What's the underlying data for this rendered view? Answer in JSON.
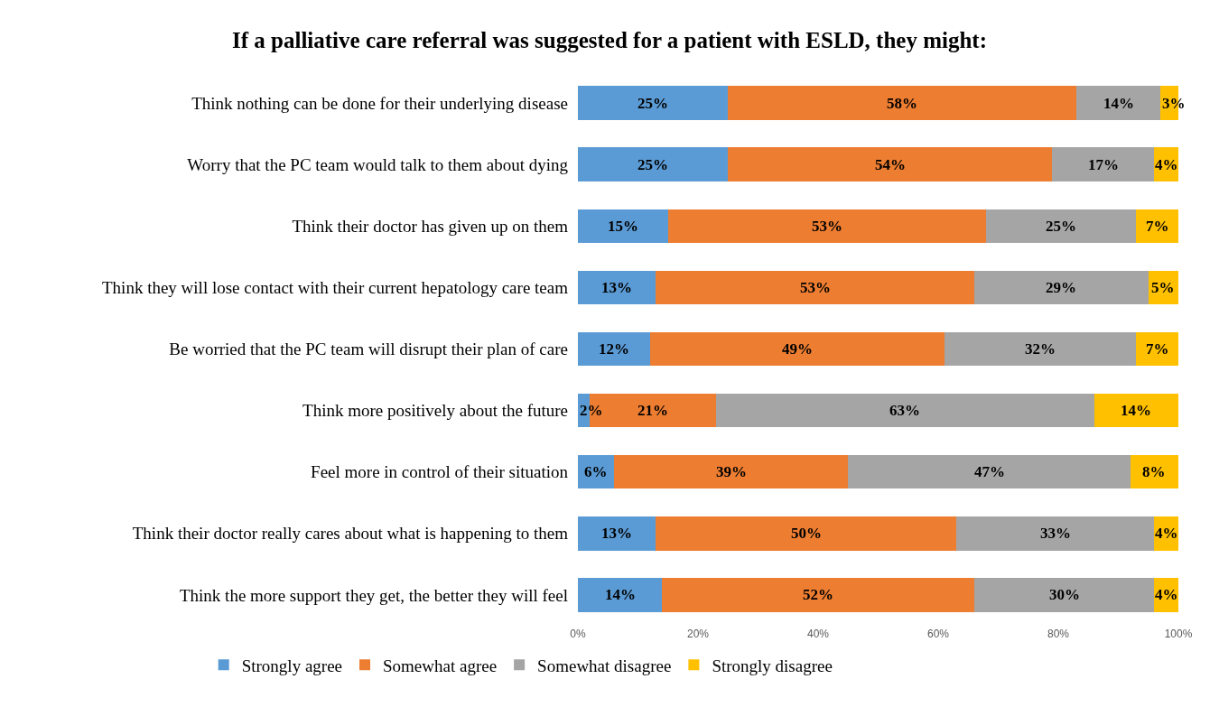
{
  "chart_data": {
    "type": "bar",
    "orientation": "horizontal",
    "stacked": true,
    "title": "If a palliative care referral was suggested for a patient with ESLD, they might:",
    "categories": [
      "Think nothing can be done for their underlying disease",
      "Worry that the PC team would talk to them about dying",
      "Think their doctor has given up on them",
      "Think they will lose contact with their current hepatology care team",
      "Be worried that the PC team will disrupt their plan of care",
      "Think more positively about the future",
      "Feel more in control of their situation",
      "Think their doctor really cares about what is happening to them",
      "Think the more support they get, the better they will feel"
    ],
    "series": [
      {
        "name": "Strongly agree",
        "color": "#5b9bd5",
        "values": [
          25,
          25,
          15,
          13,
          12,
          2,
          6,
          13,
          14
        ],
        "value_labels": [
          "25%",
          "25%",
          "15%",
          "13%",
          "12%",
          "2%",
          "6%",
          "13%",
          "14%"
        ]
      },
      {
        "name": "Somewhat agree",
        "color": "#ed7d31",
        "values": [
          58,
          54,
          53,
          53,
          49,
          21,
          39,
          50,
          52
        ],
        "value_labels": [
          "58%",
          "54%",
          "53%",
          "53%",
          "49%",
          "21%",
          "39%",
          "50%",
          "52%"
        ]
      },
      {
        "name": "Somewhat disagree",
        "color": "#a5a5a5",
        "values": [
          14,
          17,
          25,
          29,
          32,
          63,
          47,
          33,
          30
        ],
        "value_labels": [
          "14%",
          "17%",
          "25%",
          "29%",
          "32%",
          "63%",
          "47%",
          "33%",
          "30%"
        ]
      },
      {
        "name": "Strongly disagree",
        "color": "#ffc000",
        "values": [
          3,
          4,
          7,
          5,
          7,
          14,
          8,
          4,
          4
        ],
        "value_labels": [
          "3%",
          "4%",
          "7%",
          "5%",
          "7%",
          "14%",
          "8%",
          "4%",
          "4%"
        ]
      }
    ],
    "xlim": [
      0,
      100
    ],
    "xticks": [
      {
        "value": 0,
        "label": "0%"
      },
      {
        "value": 20,
        "label": "20%"
      },
      {
        "value": 40,
        "label": "40%"
      },
      {
        "value": 60,
        "label": "60%"
      },
      {
        "value": 80,
        "label": "80%"
      },
      {
        "value": 100,
        "label": "100%"
      }
    ],
    "legend": "bottom"
  }
}
